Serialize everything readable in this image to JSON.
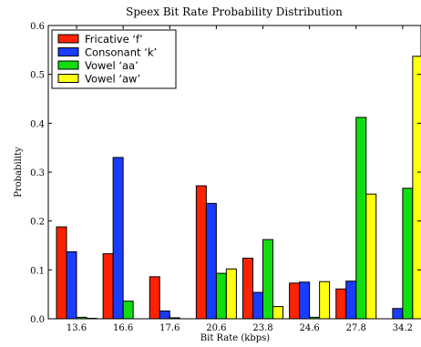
{
  "chart_data": {
    "type": "bar",
    "title": "Speex Bit Rate Probability Distribution",
    "xlabel": "Bit Rate (kbps)",
    "ylabel": "Probability",
    "ylim": [
      0,
      0.6
    ],
    "yticks": [
      "0.0",
      "0.1",
      "0.2",
      "0.3",
      "0.4",
      "0.5",
      "0.6"
    ],
    "categories": [
      "13.6",
      "16.6",
      "17.6",
      "20.6",
      "23.8",
      "24.6",
      "27.8",
      "34.2"
    ],
    "legend_position": "top-left",
    "grid": false,
    "series": [
      {
        "name": "Fricative ‘f’",
        "color": "#ff2200",
        "values": [
          0.188,
          0.133,
          0.086,
          0.272,
          0.124,
          0.073,
          0.061,
          0.0
        ]
      },
      {
        "name": "Consonant ‘k’",
        "color": "#1a3cff",
        "values": [
          0.137,
          0.33,
          0.016,
          0.236,
          0.054,
          0.075,
          0.077,
          0.021
        ]
      },
      {
        "name": "Vowel ‘aa’",
        "color": "#11dd11",
        "values": [
          0.003,
          0.036,
          0.002,
          0.093,
          0.162,
          0.003,
          0.412,
          0.267
        ]
      },
      {
        "name": "Vowel ‘aw’",
        "color": "#ffff11",
        "values": [
          0.001,
          0.0,
          0.0,
          0.102,
          0.025,
          0.076,
          0.255,
          0.537
        ]
      }
    ]
  }
}
